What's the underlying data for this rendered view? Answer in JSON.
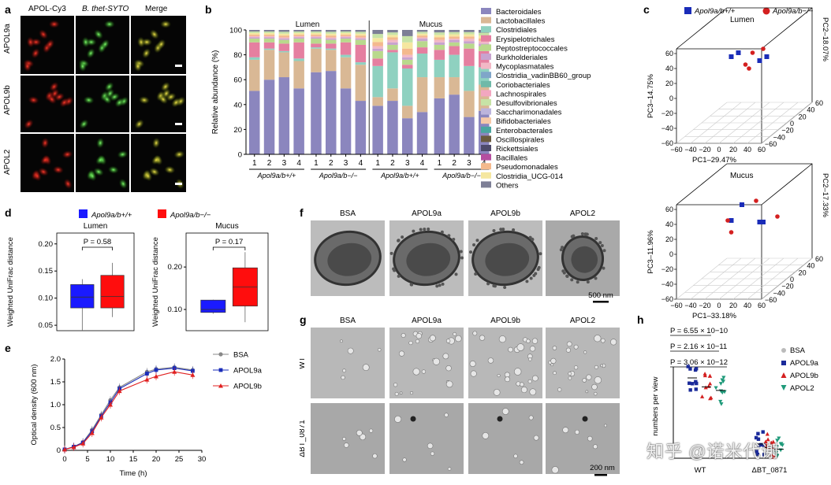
{
  "panels": {
    "a": {
      "label": "a",
      "col_headers": [
        "APOL-Cy3",
        "B. thet-SYTO",
        "Merge"
      ],
      "row_labels": [
        "APOL9a",
        "APOL9b",
        "APOL2"
      ]
    },
    "b": {
      "label": "b",
      "section_labels": [
        "Lumen",
        "Mucus"
      ],
      "ylabel": "Relative abundance (%)",
      "yticks": [
        "0",
        "20",
        "40",
        "60",
        "80",
        "100"
      ],
      "xticks": [
        "1",
        "2",
        "3",
        "4",
        "1",
        "2",
        "3",
        "4",
        "1",
        "2",
        "3",
        "4",
        "1",
        "2",
        "3",
        "4"
      ],
      "group_labels": [
        "Apol9a/b+/+",
        "Apol9a/b−/−",
        "Apol9a/b+/+",
        "Apol9a/b−/−"
      ],
      "legend": [
        {
          "name": "Bacteroidales",
          "color": "#8b86be"
        },
        {
          "name": "Lactobacillales",
          "color": "#d9b895"
        },
        {
          "name": "Clostridiales",
          "color": "#8fd1c0"
        },
        {
          "name": "Erysipelotrichales",
          "color": "#e57fa0"
        },
        {
          "name": "Peptostreptococcales",
          "color": "#b9d98c"
        },
        {
          "name": "Burkholderiales",
          "color": "#c8a3cf"
        },
        {
          "name": "Mycoplasmatales",
          "color": "#f2b8c6"
        },
        {
          "name": "Clostridia_vadinBB60_group",
          "color": "#7fa6c9"
        },
        {
          "name": "Coriobacteriales",
          "color": "#6fb9a8"
        },
        {
          "name": "Lachnospirales",
          "color": "#f2a7c0"
        },
        {
          "name": "Desulfovibrionales",
          "color": "#c7e3a6"
        },
        {
          "name": "Saccharimonadales",
          "color": "#bcb4dc"
        },
        {
          "name": "Bifidobacteriales",
          "color": "#f7c9a8"
        },
        {
          "name": "Enterobacterales",
          "color": "#4aa6a0"
        },
        {
          "name": "Oscillospirales",
          "color": "#6a5a3e"
        },
        {
          "name": "Rickettsiales",
          "color": "#4d4a6a"
        },
        {
          "name": "Bacillales",
          "color": "#b54ea0"
        },
        {
          "name": "Pseudomonadales",
          "color": "#f4b98d"
        },
        {
          "name": "Clostridia_UCG-014",
          "color": "#f5e7a0"
        },
        {
          "name": "Others",
          "color": "#7d7f96"
        }
      ]
    },
    "c": {
      "label": "c",
      "legend": [
        {
          "name": "Apol9a/b+/+",
          "color": "#1a2cb8",
          "marker": "square"
        },
        {
          "name": "Apol9a/b−/−",
          "color": "#d42020",
          "marker": "circle"
        }
      ],
      "lumen": {
        "title": "Lumen",
        "zlabel": "PC3–14.75%",
        "ylabel": "PC2–18.07%",
        "xlabel": "PC1–29.47%"
      },
      "mucus": {
        "title": "Mucus",
        "zlabel": "PC3–11.96%",
        "ylabel": "PC2–17.33%",
        "xlabel": "PC1–33.18%"
      },
      "zticks": [
        "60",
        "40",
        "20",
        "0",
        "−20",
        "−40",
        "−60"
      ],
      "xticks": [
        "−60",
        "−40",
        "−20",
        "0",
        "20",
        "40",
        "60"
      ],
      "yticks": [
        "60",
        "40",
        "20",
        "0",
        "−20",
        "−40",
        "−60"
      ]
    },
    "d": {
      "label": "d",
      "legend": [
        {
          "name": "Apol9a/b+/+",
          "color": "#1a1aff"
        },
        {
          "name": "Apol9a/b−/−",
          "color": "#ff0d0d"
        }
      ],
      "ylabel": "Weighted UniFrac distance",
      "lumen": {
        "title": "Lumen",
        "pval": "P = 0.58",
        "yticks": [
          "0.05",
          "0.10",
          "0.15",
          "0.20"
        ]
      },
      "mucus": {
        "title": "Mucus",
        "pval": "P = 0.17",
        "yticks": [
          "0.10",
          "0.20"
        ]
      }
    },
    "e": {
      "label": "e",
      "xlabel": "Time (h)",
      "ylabel": "Optical density (600 nm)",
      "legend": [
        "BSA",
        "APOL9a",
        "APOL9b"
      ],
      "xticks": [
        "0",
        "5",
        "10",
        "15",
        "20",
        "25",
        "30"
      ],
      "yticks": [
        "0",
        "0.5",
        "1.0",
        "1.5",
        "2.0"
      ]
    },
    "f": {
      "label": "f",
      "titles": [
        "BSA",
        "APOL9a",
        "APOL9b",
        "APOL2"
      ],
      "scale": "500 nm"
    },
    "g": {
      "label": "g",
      "titles": [
        "BSA",
        "APOL9a",
        "APOL9b",
        "APOL2"
      ],
      "row_labels": [
        "WT",
        "ΔBT_0871"
      ],
      "scale": "200 nm"
    },
    "h": {
      "label": "h",
      "pvals": [
        "P = 6.55 × 10−10",
        "P = 2.16 × 10−11",
        "P = 3.06 × 10−12"
      ],
      "ylabel": "numbers per view",
      "xlabels": [
        "WT",
        "ΔBT_0871"
      ],
      "legend": [
        {
          "name": "BSA",
          "color": "#bbbbbb"
        },
        {
          "name": "APOL9a",
          "color": "#1a2a9a"
        },
        {
          "name": "APOL9b",
          "color": "#d42020"
        },
        {
          "name": "APOL2",
          "color": "#1f9a7a"
        }
      ]
    }
  },
  "watermark": "知乎 @诺米代谢",
  "chart_data": [
    {
      "type": "bar",
      "panel": "b",
      "stacked": true,
      "categories": [
        "1",
        "2",
        "3",
        "4",
        "1",
        "2",
        "3",
        "4",
        "1",
        "2",
        "3",
        "4",
        "1",
        "2",
        "3",
        "4"
      ],
      "ylim": [
        0,
        100
      ],
      "series": [
        {
          "name": "Bacteroidales",
          "values": [
            51,
            60,
            62,
            53,
            66,
            67,
            53,
            43,
            39,
            43,
            29,
            34,
            45,
            48,
            30,
            35
          ]
        },
        {
          "name": "Lactobacillales",
          "values": [
            25,
            24,
            20,
            22,
            19,
            17,
            25,
            29,
            7,
            10,
            10,
            28,
            17,
            14,
            21,
            21
          ]
        },
        {
          "name": "Clostridiales",
          "values": [
            2,
            1,
            1,
            2,
            1,
            1,
            2,
            2,
            25,
            29,
            30,
            19,
            14,
            18,
            20,
            14
          ]
        },
        {
          "name": "Erysipelotrichales",
          "values": [
            12,
            5,
            6,
            13,
            3,
            4,
            10,
            14,
            6,
            2,
            3,
            5,
            8,
            7,
            14,
            13
          ]
        },
        {
          "name": "Peptostreptococcales",
          "values": [
            3,
            3,
            3,
            3,
            4,
            3,
            3,
            4,
            6,
            4,
            4,
            5,
            4,
            3,
            4,
            4
          ]
        },
        {
          "name": "Burkholderiales",
          "values": [
            1,
            1,
            1,
            1,
            1,
            1,
            1,
            1,
            2,
            2,
            2,
            2,
            2,
            2,
            2,
            2
          ]
        },
        {
          "name": "Mycoplasmatales",
          "values": [
            1,
            1,
            1,
            1,
            1,
            1,
            1,
            1,
            2,
            2,
            2,
            1,
            2,
            1,
            2,
            2
          ]
        },
        {
          "name": "Others",
          "values": [
            5,
            5,
            6,
            5,
            5,
            6,
            5,
            6,
            13,
            8,
            20,
            6,
            8,
            7,
            7,
            9
          ]
        }
      ]
    },
    {
      "type": "scatter",
      "panel": "c-lumen",
      "series": [
        {
          "name": "Apol9a/b+/+",
          "x": [
            -5,
            5,
            35,
            45
          ],
          "y": [
            0,
            0,
            0,
            0
          ],
          "z": [
            30,
            35,
            25,
            30
          ]
        },
        {
          "name": "Apol9a/b−/−",
          "x": [
            15,
            20,
            25,
            40
          ],
          "y": [
            0,
            0,
            0,
            0
          ],
          "z": [
            20,
            15,
            35,
            40
          ]
        }
      ],
      "xlim": [
        -60,
        60
      ],
      "ylim": [
        -60,
        60
      ],
      "zlim": [
        -60,
        60
      ]
    },
    {
      "type": "scatter",
      "panel": "c-mucus",
      "series": [
        {
          "name": "Apol9a/b+/+",
          "x": [
            -5,
            10,
            35,
            40
          ],
          "y": [
            0,
            0,
            0,
            0
          ],
          "z": [
            20,
            40,
            18,
            18
          ]
        },
        {
          "name": "Apol9a/b−/−",
          "x": [
            -10,
            -5,
            30,
            60
          ],
          "y": [
            0,
            0,
            0,
            0
          ],
          "z": [
            20,
            5,
            45,
            25
          ]
        }
      ],
      "xlim": [
        -60,
        60
      ],
      "ylim": [
        -60,
        60
      ],
      "zlim": [
        -60,
        60
      ]
    },
    {
      "type": "box",
      "panel": "d-lumen",
      "ylim": [
        0.04,
        0.22
      ],
      "series": [
        {
          "name": "Apol9a/b+/+",
          "min": 0.04,
          "q1": 0.082,
          "median": 0.102,
          "q3": 0.125,
          "max": 0.135
        },
        {
          "name": "Apol9a/b−/−",
          "min": 0.065,
          "q1": 0.082,
          "median": 0.103,
          "q3": 0.142,
          "max": 0.165
        }
      ]
    },
    {
      "type": "box",
      "panel": "d-mucus",
      "ylim": [
        0.05,
        0.28
      ],
      "series": [
        {
          "name": "Apol9a/b+/+",
          "min": 0.09,
          "q1": 0.093,
          "median": 0.1,
          "q3": 0.122,
          "max": 0.123
        },
        {
          "name": "Apol9a/b−/−",
          "min": 0.07,
          "q1": 0.108,
          "median": 0.153,
          "q3": 0.198,
          "max": 0.235
        }
      ]
    },
    {
      "type": "line",
      "panel": "e",
      "xlim": [
        0,
        30
      ],
      "ylim": [
        0,
        2.0
      ],
      "x": [
        0,
        2,
        4,
        6,
        8,
        10,
        12,
        18,
        20,
        24,
        28
      ],
      "series": [
        {
          "name": "BSA",
          "values": [
            0.02,
            0.08,
            0.18,
            0.45,
            0.78,
            1.1,
            1.38,
            1.72,
            1.78,
            1.82,
            1.76
          ]
        },
        {
          "name": "APOL9a",
          "values": [
            0.02,
            0.08,
            0.17,
            0.42,
            0.75,
            1.05,
            1.35,
            1.68,
            1.76,
            1.8,
            1.74
          ]
        },
        {
          "name": "APOL9b",
          "values": [
            0.02,
            0.07,
            0.15,
            0.38,
            0.72,
            1.0,
            1.3,
            1.55,
            1.62,
            1.72,
            1.65
          ]
        }
      ]
    },
    {
      "type": "scatter",
      "panel": "h",
      "categories": [
        "WT",
        "ΔBT_0871"
      ],
      "series": [
        {
          "name": "APOL9a",
          "WT": 45,
          "ΔBT_0871": 8
        },
        {
          "name": "APOL9b",
          "WT": 40,
          "ΔBT_0871": 6
        },
        {
          "name": "APOL2",
          "WT": 38,
          "ΔBT_0871": 5
        }
      ]
    }
  ]
}
